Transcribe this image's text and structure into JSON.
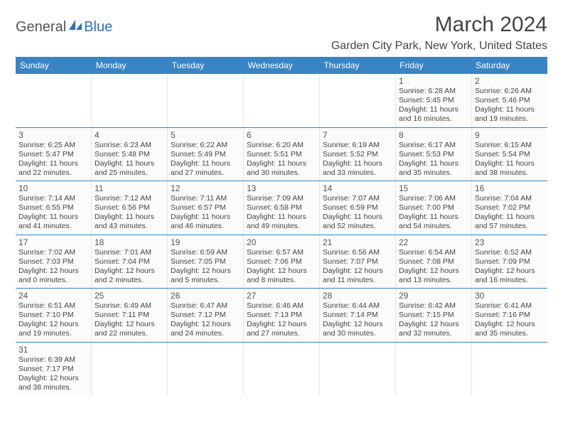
{
  "logo": {
    "text1": "General",
    "text2": "Blue",
    "icon_color": "#2f72b5"
  },
  "title": "March 2024",
  "location": "Garden City Park, New York, United States",
  "colors": {
    "header_bg": "#3a84c4",
    "header_text": "#ffffff",
    "cell_bg": "#fbfbfb",
    "border": "#3a84c4",
    "text": "#444444"
  },
  "dow": [
    "Sunday",
    "Monday",
    "Tuesday",
    "Wednesday",
    "Thursday",
    "Friday",
    "Saturday"
  ],
  "weeks": [
    [
      null,
      null,
      null,
      null,
      null,
      {
        "n": "1",
        "sr": "Sunrise: 6:28 AM",
        "ss": "Sunset: 5:45 PM",
        "d1": "Daylight: 11 hours",
        "d2": "and 16 minutes."
      },
      {
        "n": "2",
        "sr": "Sunrise: 6:26 AM",
        "ss": "Sunset: 5:46 PM",
        "d1": "Daylight: 11 hours",
        "d2": "and 19 minutes."
      }
    ],
    [
      {
        "n": "3",
        "sr": "Sunrise: 6:25 AM",
        "ss": "Sunset: 5:47 PM",
        "d1": "Daylight: 11 hours",
        "d2": "and 22 minutes."
      },
      {
        "n": "4",
        "sr": "Sunrise: 6:23 AM",
        "ss": "Sunset: 5:48 PM",
        "d1": "Daylight: 11 hours",
        "d2": "and 25 minutes."
      },
      {
        "n": "5",
        "sr": "Sunrise: 6:22 AM",
        "ss": "Sunset: 5:49 PM",
        "d1": "Daylight: 11 hours",
        "d2": "and 27 minutes."
      },
      {
        "n": "6",
        "sr": "Sunrise: 6:20 AM",
        "ss": "Sunset: 5:51 PM",
        "d1": "Daylight: 11 hours",
        "d2": "and 30 minutes."
      },
      {
        "n": "7",
        "sr": "Sunrise: 6:19 AM",
        "ss": "Sunset: 5:52 PM",
        "d1": "Daylight: 11 hours",
        "d2": "and 33 minutes."
      },
      {
        "n": "8",
        "sr": "Sunrise: 6:17 AM",
        "ss": "Sunset: 5:53 PM",
        "d1": "Daylight: 11 hours",
        "d2": "and 35 minutes."
      },
      {
        "n": "9",
        "sr": "Sunrise: 6:15 AM",
        "ss": "Sunset: 5:54 PM",
        "d1": "Daylight: 11 hours",
        "d2": "and 38 minutes."
      }
    ],
    [
      {
        "n": "10",
        "sr": "Sunrise: 7:14 AM",
        "ss": "Sunset: 6:55 PM",
        "d1": "Daylight: 11 hours",
        "d2": "and 41 minutes."
      },
      {
        "n": "11",
        "sr": "Sunrise: 7:12 AM",
        "ss": "Sunset: 6:56 PM",
        "d1": "Daylight: 11 hours",
        "d2": "and 43 minutes."
      },
      {
        "n": "12",
        "sr": "Sunrise: 7:11 AM",
        "ss": "Sunset: 6:57 PM",
        "d1": "Daylight: 11 hours",
        "d2": "and 46 minutes."
      },
      {
        "n": "13",
        "sr": "Sunrise: 7:09 AM",
        "ss": "Sunset: 6:58 PM",
        "d1": "Daylight: 11 hours",
        "d2": "and 49 minutes."
      },
      {
        "n": "14",
        "sr": "Sunrise: 7:07 AM",
        "ss": "Sunset: 6:59 PM",
        "d1": "Daylight: 11 hours",
        "d2": "and 52 minutes."
      },
      {
        "n": "15",
        "sr": "Sunrise: 7:06 AM",
        "ss": "Sunset: 7:00 PM",
        "d1": "Daylight: 11 hours",
        "d2": "and 54 minutes."
      },
      {
        "n": "16",
        "sr": "Sunrise: 7:04 AM",
        "ss": "Sunset: 7:02 PM",
        "d1": "Daylight: 11 hours",
        "d2": "and 57 minutes."
      }
    ],
    [
      {
        "n": "17",
        "sr": "Sunrise: 7:02 AM",
        "ss": "Sunset: 7:03 PM",
        "d1": "Daylight: 12 hours",
        "d2": "and 0 minutes."
      },
      {
        "n": "18",
        "sr": "Sunrise: 7:01 AM",
        "ss": "Sunset: 7:04 PM",
        "d1": "Daylight: 12 hours",
        "d2": "and 2 minutes."
      },
      {
        "n": "19",
        "sr": "Sunrise: 6:59 AM",
        "ss": "Sunset: 7:05 PM",
        "d1": "Daylight: 12 hours",
        "d2": "and 5 minutes."
      },
      {
        "n": "20",
        "sr": "Sunrise: 6:57 AM",
        "ss": "Sunset: 7:06 PM",
        "d1": "Daylight: 12 hours",
        "d2": "and 8 minutes."
      },
      {
        "n": "21",
        "sr": "Sunrise: 6:56 AM",
        "ss": "Sunset: 7:07 PM",
        "d1": "Daylight: 12 hours",
        "d2": "and 11 minutes."
      },
      {
        "n": "22",
        "sr": "Sunrise: 6:54 AM",
        "ss": "Sunset: 7:08 PM",
        "d1": "Daylight: 12 hours",
        "d2": "and 13 minutes."
      },
      {
        "n": "23",
        "sr": "Sunrise: 6:52 AM",
        "ss": "Sunset: 7:09 PM",
        "d1": "Daylight: 12 hours",
        "d2": "and 16 minutes."
      }
    ],
    [
      {
        "n": "24",
        "sr": "Sunrise: 6:51 AM",
        "ss": "Sunset: 7:10 PM",
        "d1": "Daylight: 12 hours",
        "d2": "and 19 minutes."
      },
      {
        "n": "25",
        "sr": "Sunrise: 6:49 AM",
        "ss": "Sunset: 7:11 PM",
        "d1": "Daylight: 12 hours",
        "d2": "and 22 minutes."
      },
      {
        "n": "26",
        "sr": "Sunrise: 6:47 AM",
        "ss": "Sunset: 7:12 PM",
        "d1": "Daylight: 12 hours",
        "d2": "and 24 minutes."
      },
      {
        "n": "27",
        "sr": "Sunrise: 6:46 AM",
        "ss": "Sunset: 7:13 PM",
        "d1": "Daylight: 12 hours",
        "d2": "and 27 minutes."
      },
      {
        "n": "28",
        "sr": "Sunrise: 6:44 AM",
        "ss": "Sunset: 7:14 PM",
        "d1": "Daylight: 12 hours",
        "d2": "and 30 minutes."
      },
      {
        "n": "29",
        "sr": "Sunrise: 6:42 AM",
        "ss": "Sunset: 7:15 PM",
        "d1": "Daylight: 12 hours",
        "d2": "and 32 minutes."
      },
      {
        "n": "30",
        "sr": "Sunrise: 6:41 AM",
        "ss": "Sunset: 7:16 PM",
        "d1": "Daylight: 12 hours",
        "d2": "and 35 minutes."
      }
    ],
    [
      {
        "n": "31",
        "sr": "Sunrise: 6:39 AM",
        "ss": "Sunset: 7:17 PM",
        "d1": "Daylight: 12 hours",
        "d2": "and 38 minutes."
      },
      null,
      null,
      null,
      null,
      null,
      null
    ]
  ]
}
